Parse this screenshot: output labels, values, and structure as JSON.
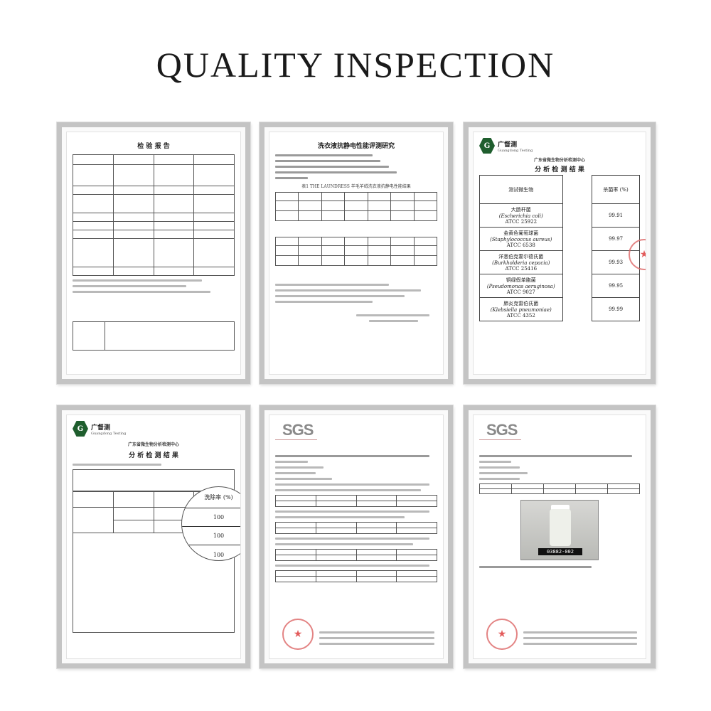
{
  "title": "QUALITY INSPECTION",
  "docs": {
    "d1": {
      "title": "检 验 报 告"
    },
    "d2": {
      "title": "洗衣液抗静电性能评测研究",
      "table1": "表1 THE LAUNDRESS 羊毛羊绒洗衣液抗静电性能结果"
    },
    "d3": {
      "org": "广东省微生物分析检测中心",
      "heading": "分 析 检 测 结 果",
      "logo": "广督测",
      "logo_sub": "Guangdong Testing",
      "col_head": "测试微生物",
      "rate_head": "杀菌率 (%)",
      "rows": [
        {
          "name": "大肠杆菌",
          "latin": "(Escherichia coli)",
          "strain": "ATCC 25922",
          "rate": "99.91"
        },
        {
          "name": "金黄色葡萄球菌",
          "latin": "(Staphylococcus aureus)",
          "strain": "ATCC 6538",
          "rate": "99.97"
        },
        {
          "name": "洋葱伯克霍尔德氏菌",
          "latin": "(Burkholderia cepacia)",
          "strain": "ATCC 25416",
          "rate": "99.93"
        },
        {
          "name": "铜绿假单胞菌",
          "latin": "(Pseudomonas aeruginosa)",
          "strain": "ATCC 9027",
          "rate": "99.95"
        },
        {
          "name": "肺炎克雷伯氏菌",
          "latin": "(Klebsiella pneumoniae)",
          "strain": "ATCC 4352",
          "rate": "99.99"
        }
      ]
    },
    "d4": {
      "org": "广东省微生物分析检测中心",
      "heading": "分 析 检 测 结 果",
      "logo": "广督测",
      "logo_sub": "Guangdong Testing",
      "mag_head": "洗除率 (%)",
      "mag_values": [
        "100",
        "100",
        "100"
      ]
    },
    "d5": {
      "logo": "SGS"
    },
    "d6": {
      "logo": "SGS",
      "sample_label": "03882-002"
    }
  }
}
